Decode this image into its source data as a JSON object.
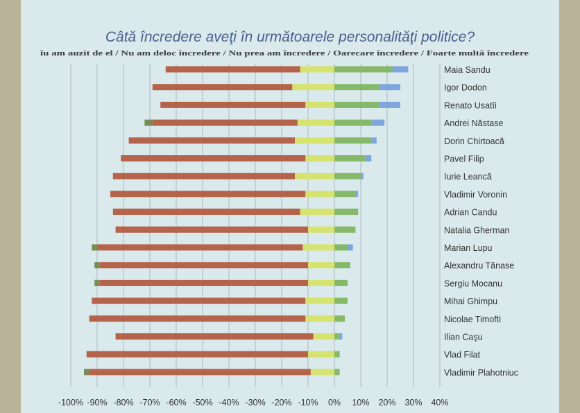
{
  "chart_data": {
    "type": "bar",
    "orientation": "horizontal",
    "stacked": true,
    "diverging": true,
    "title": "Câtă încredere aveţi în următoarele personalităţi politice?",
    "legend_text": "îu am auzit de el / Nu am deloc încredere / Nu prea am încredere / Oarecare încredere / Foarte multă încredere",
    "legend_position": "top",
    "categories": [
      "Maia Sandu",
      "Igor Dodon",
      "Renato Usatîi",
      "Andrei Năstase",
      "Dorin Chirtoacă",
      "Pavel Filip",
      "Iurie Leancă",
      "Vladimir Voronin",
      "Adrian Candu",
      "Natalia Gherman",
      "Marian Lupu",
      "Alexandru Tănase",
      "Sergiu Mocanu",
      "Mihai Ghimpu",
      "Nicolae Timofti",
      "Ilian Caşu",
      "Vlad Filat",
      "Vladimir Plahotniuc"
    ],
    "series": [
      {
        "name": "Nu am auzit de el",
        "color": "#7a8a58",
        "values": [
          0,
          0,
          0,
          -3,
          0,
          0,
          0,
          0,
          0,
          0,
          -2,
          -2,
          -2,
          0,
          0,
          0,
          0,
          -2
        ]
      },
      {
        "name": "Nu am deloc încredere",
        "color": "#b5634a",
        "values": [
          -51,
          -53,
          -55,
          -55,
          -63,
          -70,
          -69,
          -74,
          -71,
          -73,
          -78,
          -79,
          -79,
          -81,
          -82,
          -75,
          -84,
          -84
        ]
      },
      {
        "name": "Nu prea am încredere",
        "color": "#d7e36f",
        "values": [
          -13,
          -16,
          -11,
          -14,
          -15,
          -11,
          -15,
          -11,
          -13,
          -10,
          -12,
          -10,
          -10,
          -11,
          -11,
          -8,
          -10,
          -9
        ]
      },
      {
        "name": "Oarecare încredere",
        "color": "#86b86a",
        "values": [
          22,
          17,
          17,
          14,
          14,
          12,
          10,
          8,
          9,
          8,
          5,
          6,
          5,
          5,
          4,
          2,
          2,
          2
        ]
      },
      {
        "name": "Foarte multă încredere",
        "color": "#7fa6dc",
        "values": [
          6,
          8,
          8,
          5,
          2,
          2,
          1,
          1,
          0,
          0,
          2,
          0,
          0,
          0,
          0,
          1,
          0,
          0
        ]
      }
    ],
    "xlim": [
      -100,
      40
    ],
    "xticks": [
      -100,
      -90,
      -80,
      -70,
      -60,
      -50,
      -40,
      -30,
      -20,
      -10,
      0,
      10,
      20,
      30,
      40
    ],
    "tick_format": "percent",
    "gridlines": "vertical"
  }
}
